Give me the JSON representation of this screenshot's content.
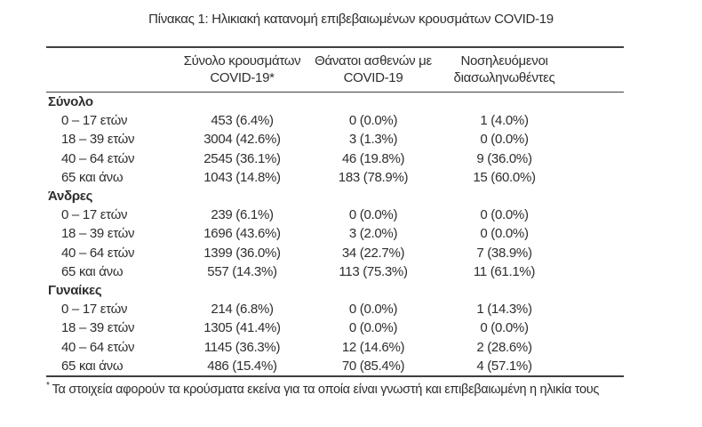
{
  "caption": "Πίνακας 1: Ηλικιακή κατανομή επιβεβαιωμένων κρουσμάτων COVID-19",
  "columns": [
    {
      "line1": "Σύνολο κρουσμάτων",
      "line2": "COVID-19*"
    },
    {
      "line1": "Θάνατοι ασθενών με",
      "line2": "COVID-19"
    },
    {
      "line1": "Νοσηλευόμενοι",
      "line2": "διασωληνωθέντες"
    }
  ],
  "sections": [
    {
      "label": "Σύνολο",
      "rows": [
        {
          "age": "0 – 17 ετών",
          "cases": "453 (6.4%)",
          "deaths": "0 (0.0%)",
          "intubated": "1 (4.0%)"
        },
        {
          "age": "18 – 39 ετών",
          "cases": "3004 (42.6%)",
          "deaths": "3 (1.3%)",
          "intubated": "0 (0.0%)"
        },
        {
          "age": "40 – 64 ετών",
          "cases": "2545 (36.1%)",
          "deaths": "46 (19.8%)",
          "intubated": "9 (36.0%)"
        },
        {
          "age": "65 και άνω",
          "cases": "1043 (14.8%)",
          "deaths": "183 (78.9%)",
          "intubated": "15 (60.0%)"
        }
      ]
    },
    {
      "label": "Άνδρες",
      "rows": [
        {
          "age": "0 – 17 ετών",
          "cases": "239 (6.1%)",
          "deaths": "0 (0.0%)",
          "intubated": "0 (0.0%)"
        },
        {
          "age": "18 – 39 ετών",
          "cases": "1696 (43.6%)",
          "deaths": "3 (2.0%)",
          "intubated": "0 (0.0%)"
        },
        {
          "age": "40 – 64 ετών",
          "cases": "1399 (36.0%)",
          "deaths": "34 (22.7%)",
          "intubated": "7 (38.9%)"
        },
        {
          "age": "65 και άνω",
          "cases": "557 (14.3%)",
          "deaths": "113 (75.3%)",
          "intubated": "11 (61.1%)"
        }
      ]
    },
    {
      "label": "Γυναίκες",
      "rows": [
        {
          "age": "0 – 17 ετών",
          "cases": "214 (6.8%)",
          "deaths": "0 (0.0%)",
          "intubated": "1 (14.3%)"
        },
        {
          "age": "18 – 39 ετών",
          "cases": "1305 (41.4%)",
          "deaths": "0 (0.0%)",
          "intubated": "0 (0.0%)"
        },
        {
          "age": "40 – 64 ετών",
          "cases": "1145 (36.3%)",
          "deaths": "12 (14.6%)",
          "intubated": "2 (28.6%)"
        },
        {
          "age": "65 και άνω",
          "cases": "486 (15.4%)",
          "deaths": "70 (85.4%)",
          "intubated": "4 (57.1%)"
        }
      ]
    }
  ],
  "footnote": {
    "marker": "*",
    "text": "Τα στοιχεία αφορούν τα κρούσματα εκείνα για τα οποία είναι γνωστή και επιβεβαιωμένη η ηλικία τους"
  },
  "colors": {
    "background": "#ffffff",
    "text": "#2e2e2e",
    "rule": "#3f3f3f"
  }
}
